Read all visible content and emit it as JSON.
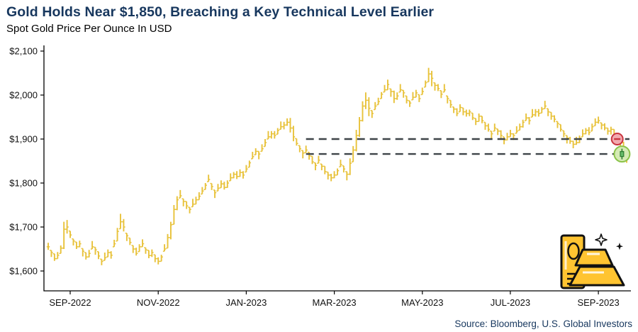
{
  "header": {
    "title": "Gold Holds Near $1,850, Breaching a Key Technical Level Earlier",
    "subtitle": "Spot Gold Price Per Ounce In USD"
  },
  "footer": {
    "source": "Source: Bloomberg, U.S. Global Investors"
  },
  "colors": {
    "title_navy": "#17375E",
    "source_navy": "#17375E",
    "axis": "#000000",
    "bar_gold": "#E8C23A",
    "dashed_line": "#3E4448",
    "marker_red_border": "#C9353F",
    "marker_red_fill": "#F2ABB1",
    "marker_green_border": "#8BC34A",
    "marker_green_fill": "#D5EBB5",
    "marker_green_candle": "#66BB6A",
    "marker_green_dark": "#2E7D32",
    "icon_gold": "#FFC431"
  },
  "chart_data": {
    "type": "ohlc-bar",
    "title": "Gold Holds Near $1,850, Breaching a Key Technical Level Earlier",
    "subtitle": "Spot Gold Price Per Ounce In USD",
    "unit": "USD per ounce",
    "grid": false,
    "legend": false,
    "ylim": [
      1555,
      2113
    ],
    "y_ticks": [
      {
        "label": "$2,100",
        "value": 2100
      },
      {
        "label": "$2,000",
        "value": 2000
      },
      {
        "label": "$1,900",
        "value": 1900
      },
      {
        "label": "$1,800",
        "value": 1800
      },
      {
        "label": "$1,700",
        "value": 1700
      },
      {
        "label": "$1,600",
        "value": 1600
      }
    ],
    "x_ticks": [
      {
        "label": "SEP-2022",
        "bar": 7
      },
      {
        "label": "NOV-2022",
        "bar": 35
      },
      {
        "label": "JAN-2023",
        "bar": 63
      },
      {
        "label": "MAR-2023",
        "bar": 91
      },
      {
        "label": "MAY-2023",
        "bar": 119
      },
      {
        "label": "JUL-2023",
        "bar": 147
      },
      {
        "label": "SEP-2023",
        "bar": 175
      }
    ],
    "support_resistance_lines": [
      {
        "value": 1900,
        "style": "dashed",
        "start_bar": 82
      },
      {
        "value": 1866,
        "style": "dashed",
        "start_bar": 82
      }
    ],
    "markers": [
      {
        "shape": "circle-minus",
        "color": "red",
        "value": 1900,
        "bar": 181
      },
      {
        "shape": "circle-candle",
        "color": "green",
        "value": 1866,
        "bar": 182.5
      }
    ],
    "bars_format": [
      "low",
      "high",
      "close"
    ],
    "bars": [
      [
        1648,
        1664,
        1655
      ],
      [
        1632,
        1647,
        1642
      ],
      [
        1623,
        1639,
        1628
      ],
      [
        1628,
        1643,
        1636
      ],
      [
        1640,
        1658,
        1652
      ],
      [
        1650,
        1712,
        1695
      ],
      [
        1685,
        1716,
        1700
      ],
      [
        1675,
        1691,
        1682
      ],
      [
        1658,
        1673,
        1668
      ],
      [
        1650,
        1666,
        1655
      ],
      [
        1654,
        1669,
        1662
      ],
      [
        1633,
        1651,
        1645
      ],
      [
        1626,
        1642,
        1632
      ],
      [
        1631,
        1648,
        1640
      ],
      [
        1650,
        1668,
        1655
      ],
      [
        1637,
        1654,
        1648
      ],
      [
        1627,
        1644,
        1634
      ],
      [
        1613,
        1627,
        1622
      ],
      [
        1624,
        1642,
        1630
      ],
      [
        1632,
        1649,
        1642
      ],
      [
        1628,
        1645,
        1636
      ],
      [
        1655,
        1671,
        1662
      ],
      [
        1668,
        1698,
        1690
      ],
      [
        1696,
        1730,
        1712
      ],
      [
        1690,
        1718,
        1700
      ],
      [
        1668,
        1686,
        1680
      ],
      [
        1659,
        1675,
        1665
      ],
      [
        1641,
        1658,
        1650
      ],
      [
        1635,
        1653,
        1640
      ],
      [
        1644,
        1661,
        1655
      ],
      [
        1655,
        1672,
        1662
      ],
      [
        1639,
        1653,
        1648
      ],
      [
        1629,
        1647,
        1635
      ],
      [
        1632,
        1649,
        1642
      ],
      [
        1620,
        1637,
        1628
      ],
      [
        1615,
        1631,
        1622
      ],
      [
        1622,
        1637,
        1632
      ],
      [
        1645,
        1661,
        1650
      ],
      [
        1652,
        1684,
        1676
      ],
      [
        1672,
        1712,
        1705
      ],
      [
        1706,
        1750,
        1740
      ],
      [
        1738,
        1770,
        1762
      ],
      [
        1766,
        1784,
        1771
      ],
      [
        1747,
        1764,
        1758
      ],
      [
        1741,
        1758,
        1748
      ],
      [
        1731,
        1745,
        1740
      ],
      [
        1746,
        1764,
        1752
      ],
      [
        1752,
        1769,
        1762
      ],
      [
        1762,
        1779,
        1770
      ],
      [
        1775,
        1791,
        1782
      ],
      [
        1785,
        1800,
        1795
      ],
      [
        1803,
        1819,
        1808
      ],
      [
        1784,
        1799,
        1792
      ],
      [
        1766,
        1784,
        1778
      ],
      [
        1782,
        1798,
        1788
      ],
      [
        1789,
        1806,
        1798
      ],
      [
        1785,
        1803,
        1790
      ],
      [
        1789,
        1806,
        1800
      ],
      [
        1805,
        1822,
        1812
      ],
      [
        1811,
        1825,
        1820
      ],
      [
        1809,
        1827,
        1815
      ],
      [
        1814,
        1831,
        1824
      ],
      [
        1810,
        1827,
        1818
      ],
      [
        1825,
        1841,
        1832
      ],
      [
        1836,
        1851,
        1846
      ],
      [
        1855,
        1871,
        1860
      ],
      [
        1864,
        1879,
        1872
      ],
      [
        1854,
        1872,
        1866
      ],
      [
        1872,
        1888,
        1878
      ],
      [
        1883,
        1900,
        1892
      ],
      [
        1900,
        1918,
        1905
      ],
      [
        1901,
        1918,
        1912
      ],
      [
        1901,
        1918,
        1908
      ],
      [
        1911,
        1925,
        1920
      ],
      [
        1922,
        1940,
        1928
      ],
      [
        1922,
        1939,
        1932
      ],
      [
        1930,
        1947,
        1938
      ],
      [
        1915,
        1948,
        1925
      ],
      [
        1895,
        1930,
        1905
      ],
      [
        1885,
        1901,
        1890
      ],
      [
        1870,
        1885,
        1878
      ],
      [
        1856,
        1874,
        1868
      ],
      [
        1869,
        1885,
        1875
      ],
      [
        1853,
        1870,
        1862
      ],
      [
        1843,
        1861,
        1848
      ],
      [
        1829,
        1846,
        1840
      ],
      [
        1845,
        1862,
        1852
      ],
      [
        1829,
        1843,
        1838
      ],
      [
        1820,
        1838,
        1826
      ],
      [
        1808,
        1825,
        1818
      ],
      [
        1804,
        1821,
        1812
      ],
      [
        1811,
        1827,
        1818
      ],
      [
        1818,
        1833,
        1828
      ],
      [
        1837,
        1853,
        1842
      ],
      [
        1824,
        1839,
        1832
      ],
      [
        1806,
        1826,
        1820
      ],
      [
        1818,
        1856,
        1845
      ],
      [
        1848,
        1884,
        1875
      ],
      [
        1872,
        1921,
        1908
      ],
      [
        1905,
        1950,
        1942
      ],
      [
        1940,
        1986,
        1975
      ],
      [
        1968,
        2006,
        1988
      ],
      [
        1952,
        1995,
        1970
      ],
      [
        1948,
        1965,
        1958
      ],
      [
        1967,
        1984,
        1975
      ],
      [
        1978,
        1994,
        1985
      ],
      [
        1992,
        2007,
        2002
      ],
      [
        2007,
        2023,
        2012
      ],
      [
        2012,
        2035,
        2024
      ],
      [
        1996,
        2014,
        2008
      ],
      [
        1982,
        2010,
        1992
      ],
      [
        1989,
        2006,
        1998
      ],
      [
        2007,
        2025,
        2012
      ],
      [
        1994,
        2011,
        2005
      ],
      [
        1981,
        1998,
        1988
      ],
      [
        1973,
        1987,
        1982
      ],
      [
        1989,
        2007,
        1995
      ],
      [
        1995,
        2012,
        2005
      ],
      [
        1984,
        2001,
        1992
      ],
      [
        2001,
        2017,
        2008
      ],
      [
        2018,
        2033,
        2028
      ],
      [
        2030,
        2062,
        2048
      ],
      [
        2020,
        2055,
        2038
      ],
      [
        2010,
        2028,
        2022
      ],
      [
        2009,
        2025,
        2015
      ],
      [
        1993,
        2010,
        2002
      ],
      [
        2007,
        2025,
        2012
      ],
      [
        1981,
        1998,
        1992
      ],
      [
        1971,
        1988,
        1978
      ],
      [
        1959,
        1973,
        1968
      ],
      [
        1952,
        1970,
        1958
      ],
      [
        1962,
        1979,
        1972
      ],
      [
        1954,
        1971,
        1962
      ],
      [
        1951,
        1967,
        1958
      ],
      [
        1952,
        1967,
        1962
      ],
      [
        1943,
        1959,
        1948
      ],
      [
        1932,
        1947,
        1940
      ],
      [
        1940,
        1958,
        1952
      ],
      [
        1936,
        1952,
        1942
      ],
      [
        1921,
        1938,
        1930
      ],
      [
        1917,
        1935,
        1922
      ],
      [
        1901,
        1918,
        1912
      ],
      [
        1918,
        1935,
        1925
      ],
      [
        1909,
        1923,
        1918
      ],
      [
        1902,
        1920,
        1908
      ],
      [
        1888,
        1905,
        1898
      ],
      [
        1897,
        1914,
        1905
      ],
      [
        1905,
        1921,
        1912
      ],
      [
        1898,
        1913,
        1908
      ],
      [
        1913,
        1929,
        1918
      ],
      [
        1920,
        1935,
        1928
      ],
      [
        1926,
        1944,
        1938
      ],
      [
        1942,
        1958,
        1948
      ],
      [
        1933,
        1950,
        1942
      ],
      [
        1950,
        1968,
        1955
      ],
      [
        1951,
        1968,
        1962
      ],
      [
        1951,
        1968,
        1958
      ],
      [
        1959,
        1973,
        1968
      ],
      [
        1969,
        1987,
        1975
      ],
      [
        1952,
        1969,
        1962
      ],
      [
        1944,
        1961,
        1952
      ],
      [
        1938,
        1954,
        1945
      ],
      [
        1925,
        1940,
        1935
      ],
      [
        1917,
        1933,
        1922
      ],
      [
        1904,
        1919,
        1912
      ],
      [
        1890,
        1908,
        1902
      ],
      [
        1889,
        1905,
        1895
      ],
      [
        1879,
        1896,
        1888
      ],
      [
        1887,
        1905,
        1892
      ],
      [
        1891,
        1908,
        1902
      ],
      [
        1905,
        1922,
        1912
      ],
      [
        1911,
        1925,
        1920
      ],
      [
        1909,
        1927,
        1915
      ],
      [
        1918,
        1935,
        1928
      ],
      [
        1930,
        1947,
        1938
      ],
      [
        1935,
        1951,
        1942
      ],
      [
        1922,
        1937,
        1932
      ],
      [
        1920,
        1936,
        1925
      ],
      [
        1910,
        1925,
        1918
      ],
      [
        1910,
        1928,
        1922
      ],
      [
        1906,
        1922,
        1912
      ],
      [
        1893,
        1910,
        1902
      ],
      [
        1884,
        1902,
        1892
      ],
      [
        1860,
        1894,
        1872
      ],
      [
        1846,
        1874,
        1855
      ]
    ]
  }
}
